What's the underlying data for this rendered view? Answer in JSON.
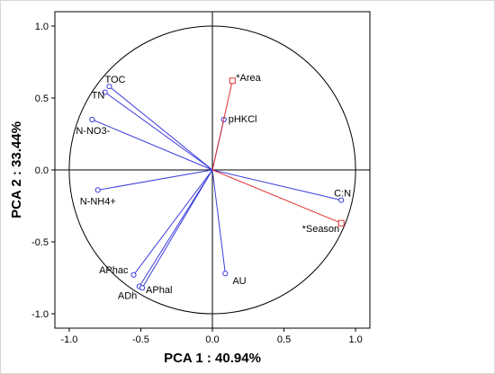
{
  "chart_data": {
    "type": "scatter",
    "subtype": "pca-correlation-circle",
    "xlabel": "PCA 1 : 40.94%",
    "ylabel": "PCA 2 : 33.44%",
    "xlim": [
      -1.1,
      1.1
    ],
    "ylim": [
      -1.1,
      1.1
    ],
    "xticks": [
      "-1.0",
      "-0.5",
      "0.0",
      "0.5",
      "1.0"
    ],
    "yticks": [
      "1.0",
      "0.5",
      "0.0",
      "-0.5",
      "-1.0"
    ],
    "grid": false,
    "unit_circle": true,
    "active_color": "#3c3cdc",
    "supplementary_color": "#e03030",
    "variables": [
      {
        "label": "TOC",
        "x": -0.72,
        "y": 0.58,
        "kind": "active"
      },
      {
        "label": "TN",
        "x": -0.75,
        "y": 0.54,
        "kind": "active"
      },
      {
        "label": "N-NO3-",
        "x": -0.84,
        "y": 0.35,
        "kind": "active"
      },
      {
        "label": "N-NH4+",
        "x": -0.8,
        "y": -0.14,
        "kind": "active"
      },
      {
        "label": "APhac",
        "x": -0.55,
        "y": -0.73,
        "kind": "active"
      },
      {
        "label": "ADh",
        "x": -0.51,
        "y": -0.81,
        "kind": "active"
      },
      {
        "label": "APhal",
        "x": -0.49,
        "y": -0.82,
        "kind": "active"
      },
      {
        "label": "AU",
        "x": 0.09,
        "y": -0.72,
        "kind": "active"
      },
      {
        "label": "pHKCl",
        "x": 0.08,
        "y": 0.35,
        "kind": "active"
      },
      {
        "label": "C:N",
        "x": 0.9,
        "y": -0.21,
        "kind": "active"
      },
      {
        "label": "*Area",
        "x": 0.14,
        "y": 0.62,
        "kind": "supplementary"
      },
      {
        "label": "*Season",
        "x": 0.9,
        "y": -0.37,
        "kind": "supplementary"
      }
    ]
  }
}
